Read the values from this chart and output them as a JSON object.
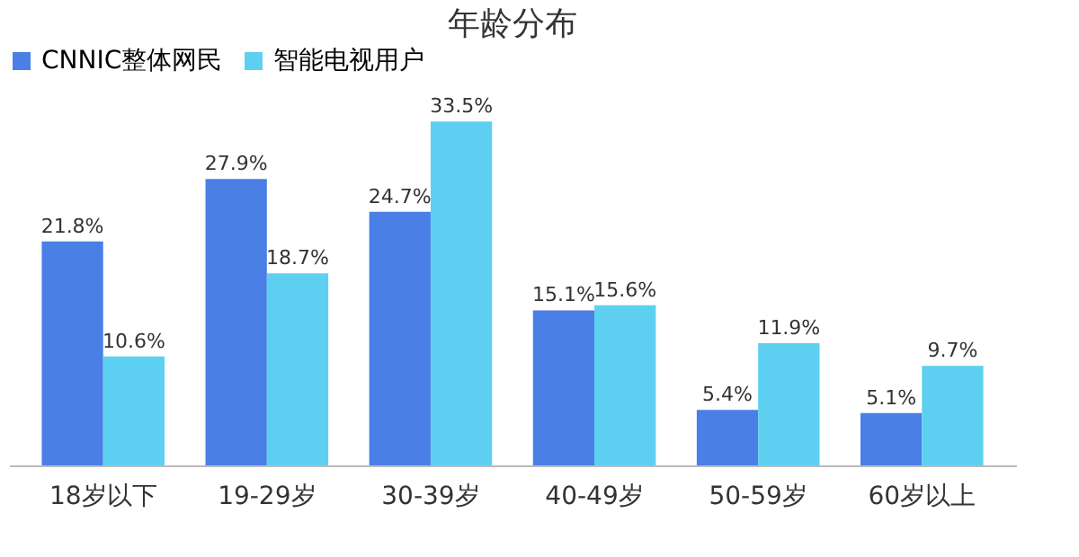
{
  "chart_data": {
    "type": "bar",
    "title": "年龄分布",
    "categories": [
      "18岁以下",
      "19-29岁",
      "30-39岁",
      "40-49岁",
      "50-59岁",
      "60岁以上"
    ],
    "series": [
      {
        "name": "CNNIC整体网民",
        "color": "#4a7fe6",
        "values": [
          21.8,
          27.9,
          24.7,
          15.1,
          5.4,
          5.1
        ],
        "value_labels": [
          "21.8%",
          "27.9%",
          "24.7%",
          "15.1%",
          "5.4%",
          "5.1%"
        ]
      },
      {
        "name": "智能电视用户",
        "color": "#5dd0f2",
        "values": [
          10.6,
          18.7,
          33.5,
          15.6,
          11.9,
          9.7
        ],
        "value_labels": [
          "10.6%",
          "18.7%",
          "33.5%",
          "15.6%",
          "11.9%",
          "9.7%"
        ]
      }
    ],
    "legend": "top",
    "grid": false
  }
}
